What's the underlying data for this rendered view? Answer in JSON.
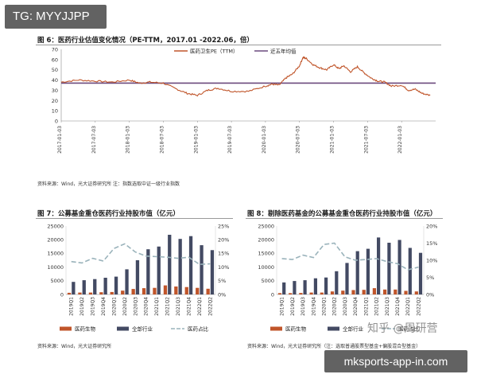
{
  "watermarks": {
    "top": "TG: MYYJJPP",
    "bottom": "mksports-app-in.com",
    "overlay": "知乎 @周研营"
  },
  "chart_data": [
    {
      "type": "line",
      "title": "图 6：医药行业估值变化情况（PE-TTM，2017.01 -2022.06，倍）",
      "source": "资料来源：Wind，光大证券研究所   注：指数选取中证一级行业指数",
      "legend": [
        "医药卫生PE（TTM）",
        "近五年均值"
      ],
      "legend_position": "top",
      "ylim": [
        0,
        70
      ],
      "yticks": [
        0,
        10,
        20,
        30,
        40,
        50,
        60,
        70
      ],
      "x_tick_labels": [
        "2017-01-03",
        "2017-07-03",
        "2018-01-03",
        "2018-07-03",
        "2019-01-03",
        "2019-07-03",
        "2020-01-03",
        "2020-07-03",
        "2021-01-03",
        "2021-07-03",
        "2022-01-03"
      ],
      "series": [
        {
          "name": "医药卫生PE（TTM）",
          "color": "#c0552a",
          "x": [
            2017.0,
            2017.25,
            2017.5,
            2017.75,
            2018.0,
            2018.15,
            2018.3,
            2018.5,
            2018.7,
            2018.85,
            2019.0,
            2019.15,
            2019.3,
            2019.5,
            2019.75,
            2020.0,
            2020.1,
            2020.2,
            2020.3,
            2020.4,
            2020.5,
            2020.55,
            2020.6,
            2020.7,
            2020.8,
            2020.9,
            2021.0,
            2021.08,
            2021.15,
            2021.25,
            2021.35,
            2021.45,
            2021.55,
            2021.65,
            2021.75,
            2021.85,
            2022.0,
            2022.1,
            2022.2,
            2022.3,
            2022.42
          ],
          "values": [
            38,
            40,
            39,
            38,
            40,
            37,
            38,
            37,
            31,
            27,
            25,
            30,
            32,
            29,
            29,
            34,
            36,
            35,
            42,
            46,
            54,
            62,
            61,
            55,
            52,
            50,
            55,
            51,
            54,
            48,
            53,
            47,
            42,
            39,
            38,
            34,
            35,
            30,
            31,
            27,
            25
          ]
        },
        {
          "name": "近五年均值",
          "color": "#6b4a7e",
          "values": [
            37,
            37
          ]
        }
      ]
    },
    {
      "type": "bar",
      "title": "图 7：公募基金重仓医药行业持股市值（亿元）",
      "source": "资料来源：Wind，光大证券研究所",
      "categories": [
        "2019Q1",
        "2019Q2",
        "2019Q3",
        "2019Q4",
        "2020Q1",
        "2020Q2",
        "2020Q3",
        "2020Q4",
        "2021Q1",
        "2021Q2",
        "2021Q3",
        "2021Q4",
        "2022Q1",
        "2022Q2"
      ],
      "ylim": [
        0,
        25000
      ],
      "yticks": [
        0,
        5000,
        10000,
        15000,
        20000,
        25000
      ],
      "y2lim": [
        0,
        25
      ],
      "y2ticks": [
        "0%",
        "5%",
        "10%",
        "15%",
        "20%",
        "25%"
      ],
      "legend": [
        "医药生物",
        "全部行业",
        "医药占比"
      ],
      "series": [
        {
          "name": "医药生物",
          "color": "#c0552a",
          "values": [
            600,
            700,
            700,
            800,
            900,
            1400,
            2000,
            2300,
            2400,
            3300,
            2900,
            2700,
            2400,
            2100
          ]
        },
        {
          "name": "全部行业",
          "color": "#434a63",
          "values": [
            4600,
            5200,
            5600,
            6100,
            6500,
            9200,
            12500,
            16500,
            17500,
            21800,
            20300,
            21300,
            18000,
            16200
          ]
        },
        {
          "name": "医药占比",
          "color": "#9ab3bb",
          "values": [
            12.0,
            11.5,
            13.2,
            12.2,
            16.8,
            18.5,
            15.5,
            14.0,
            13.8,
            13.6,
            13.2,
            13.6,
            11.0,
            11.2
          ]
        }
      ]
    },
    {
      "type": "bar",
      "title": "图 8：剔除医药基金的公募基金重仓医药行业持股市值（亿元）",
      "source": "资料来源：Wind，光大证券研究所（注：选取普通股票型基金+偏股混合型基金）",
      "categories": [
        "2019Q1",
        "2019Q2",
        "2019Q3",
        "2019Q4",
        "2020Q1",
        "2020Q2",
        "2020Q3",
        "2020Q4",
        "2021Q1",
        "2021Q2",
        "2021Q3",
        "2021Q4",
        "2022Q1",
        "2022Q2"
      ],
      "ylim": [
        0,
        25000
      ],
      "yticks": [
        0,
        5000,
        10000,
        15000,
        20000,
        25000
      ],
      "y2lim": [
        0,
        20
      ],
      "y2ticks": [
        "0%",
        "5%",
        "10%",
        "15%",
        "20%"
      ],
      "legend": [
        "医药生物",
        "全部行业",
        "医药占比"
      ],
      "series": [
        {
          "name": "医药生物",
          "color": "#c0552a",
          "values": [
            500,
            500,
            550,
            700,
            700,
            1100,
            1400,
            1600,
            1700,
            2300,
            1800,
            1800,
            1300,
            1100
          ]
        },
        {
          "name": "全部行业",
          "color": "#434a63",
          "values": [
            4400,
            4900,
            5200,
            5900,
            6200,
            8500,
            11500,
            15800,
            16700,
            20800,
            18900,
            19900,
            17000,
            15200
          ]
        },
        {
          "name": "医药占比",
          "color": "#9ab3bb",
          "values": [
            10.5,
            10.2,
            11.5,
            10.8,
            14.6,
            15.0,
            11.0,
            10.0,
            10.2,
            10.5,
            9.6,
            9.0,
            7.2,
            8.0
          ]
        }
      ]
    }
  ]
}
